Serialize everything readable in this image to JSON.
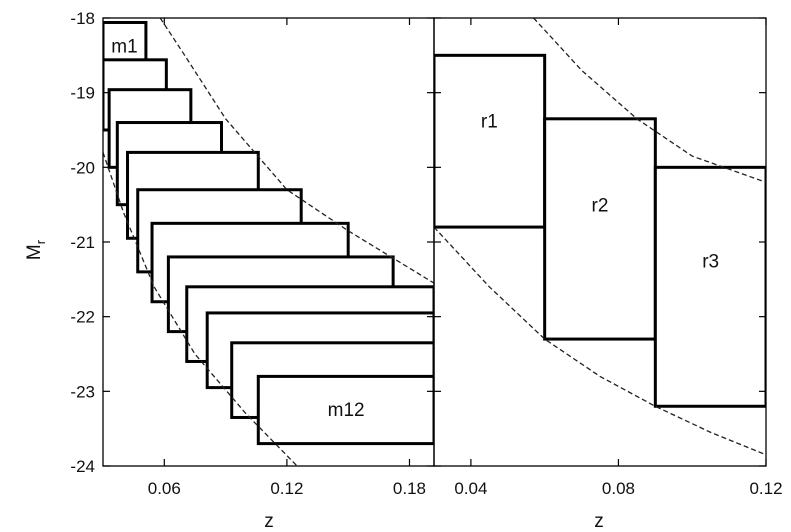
{
  "chart_data": [
    {
      "type": "rectangles",
      "xlabel": "z",
      "ylabel": "M",
      "ylabel_sub": "r",
      "xlim": [
        0.03,
        0.192
      ],
      "ylim": [
        -18,
        -24
      ],
      "xticks": [
        0.06,
        0.12,
        0.18
      ],
      "xtick_labels": [
        "0.06",
        "0.12",
        "0.18"
      ],
      "yticks": [
        -18,
        -19,
        -20,
        -21,
        -22,
        -23,
        -24
      ],
      "ytick_labels": [
        "-18",
        "-19",
        "-20",
        "-21",
        "-22",
        "-23",
        "-24"
      ],
      "boxes": [
        {
          "label": "m1",
          "x0": 0.03,
          "x1": 0.051,
          "y0": -18.06,
          "y1": -18.7
        },
        {
          "label": "",
          "x0": 0.03,
          "x1": 0.061,
          "y0": -18.56,
          "y1": -19.5
        },
        {
          "label": "",
          "x0": 0.033,
          "x1": 0.073,
          "y0": -18.96,
          "y1": -20.0
        },
        {
          "label": "",
          "x0": 0.037,
          "x1": 0.088,
          "y0": -19.4,
          "y1": -20.5
        },
        {
          "label": "",
          "x0": 0.042,
          "x1": 0.106,
          "y0": -19.8,
          "y1": -20.95
        },
        {
          "label": "",
          "x0": 0.047,
          "x1": 0.127,
          "y0": -20.3,
          "y1": -21.4
        },
        {
          "label": "",
          "x0": 0.054,
          "x1": 0.15,
          "y0": -20.75,
          "y1": -21.8
        },
        {
          "label": "",
          "x0": 0.062,
          "x1": 0.172,
          "y0": -21.2,
          "y1": -22.2
        },
        {
          "label": "",
          "x0": 0.071,
          "x1": 0.192,
          "y0": -21.6,
          "y1": -22.6
        },
        {
          "label": "",
          "x0": 0.081,
          "x1": 0.192,
          "y0": -21.95,
          "y1": -22.95
        },
        {
          "label": "",
          "x0": 0.093,
          "x1": 0.192,
          "y0": -22.35,
          "y1": -23.35
        },
        {
          "label": "m12",
          "x0": 0.106,
          "x1": 0.192,
          "y0": -22.8,
          "y1": -23.7
        }
      ],
      "curves": [
        {
          "points": [
            [
              0.058,
              -18.0
            ],
            [
              0.07,
              -18.5
            ],
            [
              0.09,
              -19.35
            ],
            [
              0.12,
              -20.3
            ],
            [
              0.15,
              -20.85
            ],
            [
              0.192,
              -21.55
            ]
          ]
        },
        {
          "points": [
            [
              0.03,
              -19.8
            ],
            [
              0.04,
              -20.6
            ],
            [
              0.055,
              -21.6
            ],
            [
              0.075,
              -22.5
            ],
            [
              0.1,
              -23.3
            ],
            [
              0.125,
              -24.0
            ]
          ]
        }
      ]
    },
    {
      "type": "rectangles",
      "xlabel": "z",
      "xlim": [
        0.03,
        0.12
      ],
      "ylim": [
        -18,
        -24
      ],
      "xticks": [
        0.04,
        0.08,
        0.12
      ],
      "xtick_labels": [
        "0.04",
        "0.08",
        "0.12"
      ],
      "yticks": [
        -18,
        -19,
        -20,
        -21,
        -22,
        -23,
        -24
      ],
      "boxes": [
        {
          "label": "r1",
          "x0": 0.03,
          "x1": 0.06,
          "y0": -18.5,
          "y1": -20.8
        },
        {
          "label": "r2",
          "x0": 0.06,
          "x1": 0.09,
          "y0": -19.35,
          "y1": -22.3
        },
        {
          "label": "r3",
          "x0": 0.09,
          "x1": 0.12,
          "y0": -20.0,
          "y1": -23.2
        }
      ],
      "curves": [
        {
          "points": [
            [
              0.057,
              -18.0
            ],
            [
              0.07,
              -18.7
            ],
            [
              0.085,
              -19.35
            ],
            [
              0.1,
              -19.85
            ],
            [
              0.12,
              -20.2
            ]
          ]
        },
        {
          "points": [
            [
              0.03,
              -20.8
            ],
            [
              0.045,
              -21.6
            ],
            [
              0.06,
              -22.3
            ],
            [
              0.075,
              -22.8
            ],
            [
              0.09,
              -23.2
            ],
            [
              0.105,
              -23.55
            ],
            [
              0.12,
              -23.85
            ]
          ]
        }
      ]
    }
  ]
}
